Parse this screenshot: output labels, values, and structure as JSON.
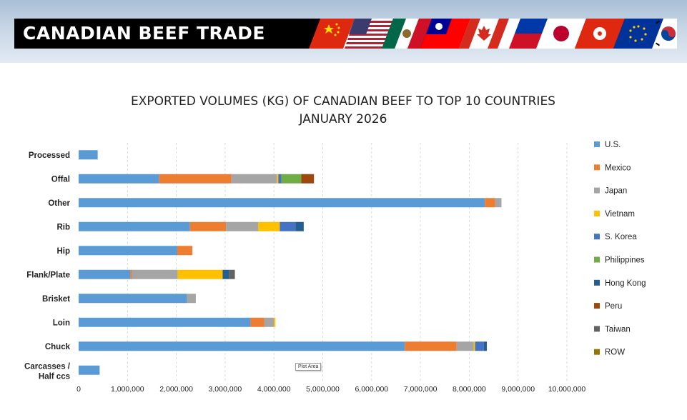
{
  "header": {
    "title": "CANADIAN BEEF TRADE",
    "flag_icons": [
      "china-flag-icon",
      "usa-flag-icon",
      "mexico-flag-icon",
      "taiwan-flag-icon",
      "canada-flag-icon",
      "philippines-flag-icon",
      "japan-flag-icon",
      "hong-kong-flag-icon",
      "eu-flag-icon",
      "south-korea-flag-icon"
    ]
  },
  "tooltip": {
    "label": "Plot Area"
  },
  "chart_data": {
    "type": "bar",
    "orientation": "horizontal",
    "stacked": true,
    "title": "EXPORTED VOLUMES (KG) OF CANADIAN BEEF TO TOP 10 COUNTRIES",
    "subtitle": "JANUARY 2026",
    "categories": [
      "Processed",
      "Offal",
      "Other",
      "Rib",
      "Hip",
      "Flank/Plate",
      "Brisket",
      "Loin",
      "Chuck",
      "Carcasses / Half ccs"
    ],
    "xlim": [
      0,
      10000000
    ],
    "xticks": [
      0,
      1000000,
      2000000,
      3000000,
      4000000,
      5000000,
      6000000,
      7000000,
      8000000,
      9000000,
      10000000
    ],
    "xtick_labels": [
      "0",
      "1,000,000",
      "2,000,000",
      "3,000,000",
      "4,000,000",
      "5,000,000",
      "6,000,000",
      "7,000,000",
      "8,000,000",
      "9,000,000",
      "10,000,000"
    ],
    "grid": "vertical-dashed",
    "legend_position": "right",
    "series": [
      {
        "name": "U.S.",
        "color": "#5b9bd5",
        "values": [
          390000,
          1650000,
          8320000,
          2280000,
          2020000,
          1060000,
          2220000,
          3520000,
          6680000,
          430000
        ]
      },
      {
        "name": "Mexico",
        "color": "#ed7d31",
        "values": [
          0,
          1480000,
          210000,
          740000,
          310000,
          30000,
          0,
          280000,
          1060000,
          0
        ]
      },
      {
        "name": "Japan",
        "color": "#a5a5a5",
        "values": [
          0,
          930000,
          130000,
          660000,
          0,
          940000,
          180000,
          200000,
          350000,
          0
        ]
      },
      {
        "name": "Vietnam",
        "color": "#ffc000",
        "values": [
          0,
          30000,
          0,
          440000,
          0,
          920000,
          0,
          30000,
          30000,
          0
        ]
      },
      {
        "name": "S. Korea",
        "color": "#4472c4",
        "values": [
          0,
          60000,
          0,
          320000,
          0,
          0,
          0,
          0,
          180000,
          0
        ]
      },
      {
        "name": "Philippines",
        "color": "#70ad47",
        "values": [
          0,
          410000,
          0,
          0,
          0,
          0,
          0,
          0,
          0,
          0
        ]
      },
      {
        "name": "Hong Kong",
        "color": "#255e91",
        "values": [
          0,
          0,
          0,
          170000,
          0,
          130000,
          0,
          0,
          60000,
          0
        ]
      },
      {
        "name": "Peru",
        "color": "#9e480e",
        "values": [
          0,
          260000,
          0,
          0,
          0,
          0,
          0,
          0,
          0,
          0
        ]
      },
      {
        "name": "Taiwan",
        "color": "#636363",
        "values": [
          0,
          0,
          0,
          0,
          0,
          120000,
          0,
          0,
          0,
          0
        ]
      },
      {
        "name": "ROW",
        "color": "#997300",
        "values": [
          0,
          0,
          0,
          0,
          0,
          0,
          0,
          0,
          0,
          0
        ]
      }
    ]
  }
}
